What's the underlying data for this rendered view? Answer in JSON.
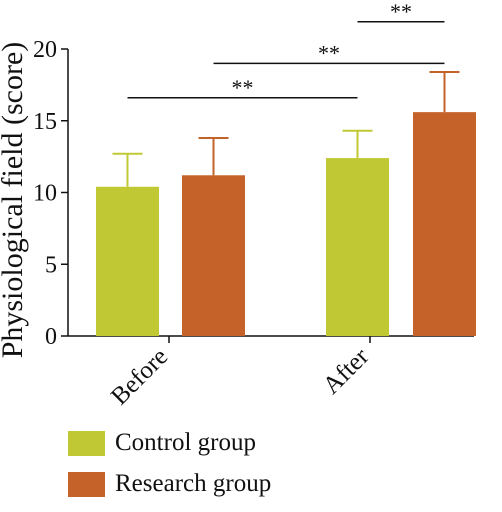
{
  "chart_data": {
    "type": "bar",
    "ylabel": "Physiological field (score)",
    "xlabel": "",
    "ylim": [
      0,
      20
    ],
    "yticks": [
      0,
      5,
      10,
      15,
      20
    ],
    "categories": [
      "Before",
      "After"
    ],
    "series": [
      {
        "name": "Control group",
        "color": "#c0c934",
        "values": [
          10.4,
          12.4
        ],
        "errors": [
          2.3,
          1.9
        ]
      },
      {
        "name": "Research group",
        "color": "#c4622a",
        "values": [
          11.2,
          15.6
        ],
        "errors": [
          2.6,
          2.8
        ]
      }
    ],
    "significance": [
      {
        "label": "**",
        "from": "Before / Control group",
        "to": "After / Control group",
        "level": 16.6
      },
      {
        "label": "**",
        "from": "Before / Research group",
        "to": "After / Research group",
        "level": 19.0
      },
      {
        "label": "**",
        "from": "After / Control group",
        "to": "After / Research group",
        "level": 21.9
      }
    ],
    "legend_position": "bottom-left",
    "grid": false
  }
}
